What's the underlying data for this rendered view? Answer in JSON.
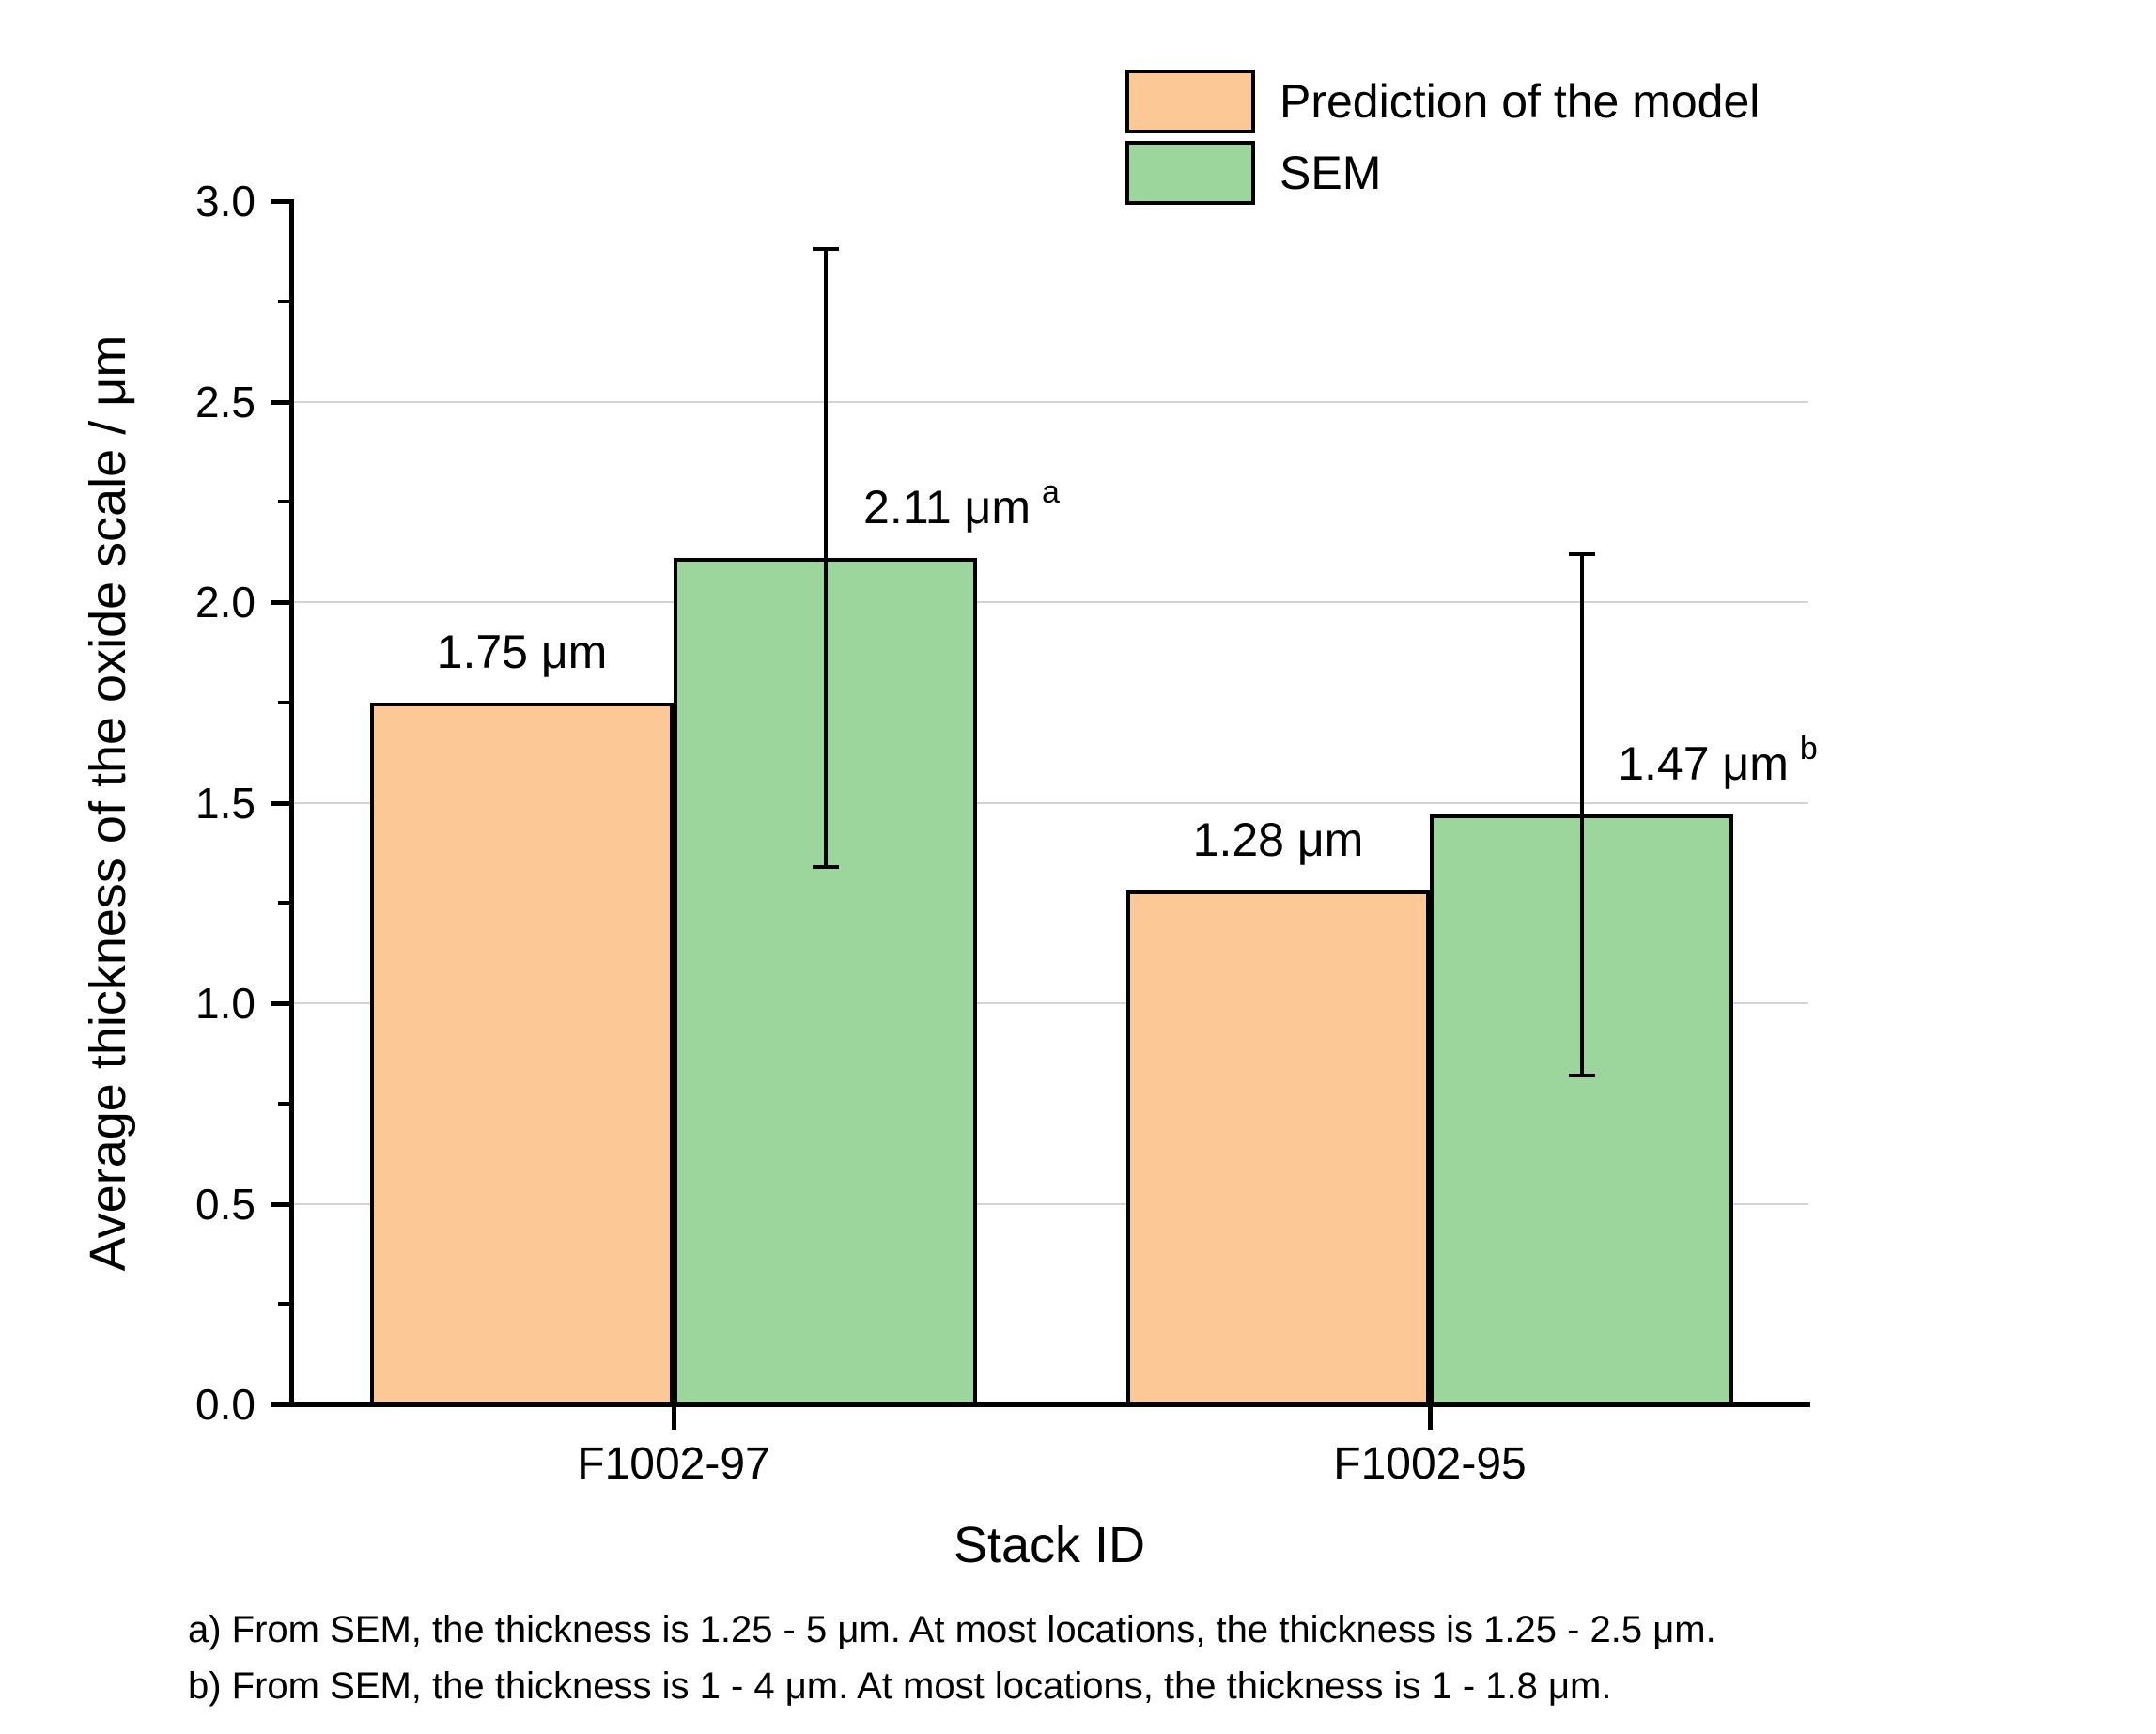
{
  "chart_data": {
    "type": "bar",
    "title": "",
    "categories": [
      "F1002-97",
      "F1002-95"
    ],
    "series": [
      {
        "name": "Prediction of the model",
        "color": "#FBC896",
        "values": [
          1.75,
          1.28
        ],
        "value_labels": [
          "1.75 μm",
          "1.28 μm"
        ],
        "label_superscripts": [
          "",
          ""
        ]
      },
      {
        "name": "SEM",
        "color": "#9CD69C",
        "values": [
          2.11,
          1.47
        ],
        "value_labels": [
          "2.11 μm",
          "1.47 μm"
        ],
        "label_superscripts": [
          "a",
          "b"
        ],
        "error_bars": [
          {
            "lower": 1.34,
            "upper": 2.88
          },
          {
            "lower": 0.82,
            "upper": 2.12
          }
        ]
      }
    ],
    "xlabel": "Stack ID",
    "ylabel": "Average thickness of the oxide scale / μm",
    "ylim": [
      0.0,
      3.0
    ],
    "ytick_values": [
      0.0,
      0.5,
      1.0,
      1.5,
      2.0,
      2.5,
      3.0
    ],
    "ytick_labels": [
      "0.0",
      "0.5",
      "1.0",
      "1.5",
      "2.0",
      "2.5",
      "3.0"
    ],
    "yminor_tick_step": 0.25,
    "grid": "horizontal gridlines at major ticks (not at 0.0 or 3.0)",
    "gridline_color": "#D3D3D3",
    "bar_edge_color": "#000000",
    "legend_position": "top right, above plot area"
  },
  "footnotes": [
    "a) From SEM, the thickness is 1.25 - 5 μm. At most locations, the thickness is 1.25 - 2.5 μm.",
    "b) From SEM, the thickness is 1 - 4 μm. At most locations, the thickness is 1 - 1.8 μm."
  ]
}
